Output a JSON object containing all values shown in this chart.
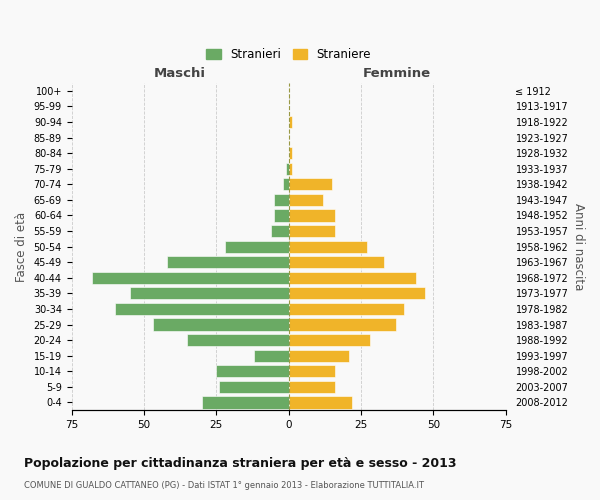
{
  "age_groups": [
    "0-4",
    "5-9",
    "10-14",
    "15-19",
    "20-24",
    "25-29",
    "30-34",
    "35-39",
    "40-44",
    "45-49",
    "50-54",
    "55-59",
    "60-64",
    "65-69",
    "70-74",
    "75-79",
    "80-84",
    "85-89",
    "90-94",
    "95-99",
    "100+"
  ],
  "birth_years": [
    "2008-2012",
    "2003-2007",
    "1998-2002",
    "1993-1997",
    "1988-1992",
    "1983-1987",
    "1978-1982",
    "1973-1977",
    "1968-1972",
    "1963-1967",
    "1958-1962",
    "1953-1957",
    "1948-1952",
    "1943-1947",
    "1938-1942",
    "1933-1937",
    "1928-1932",
    "1923-1927",
    "1918-1922",
    "1913-1917",
    "≤ 1912"
  ],
  "maschi": [
    30,
    24,
    25,
    12,
    35,
    47,
    60,
    55,
    68,
    42,
    22,
    6,
    5,
    5,
    2,
    1,
    0,
    0,
    0,
    0,
    0
  ],
  "femmine": [
    22,
    16,
    16,
    21,
    28,
    37,
    40,
    47,
    44,
    33,
    27,
    16,
    16,
    12,
    15,
    1,
    1,
    0,
    1,
    0,
    0
  ],
  "color_maschi": "#6aaa64",
  "color_femmine": "#f0b429",
  "title": "Popolazione per cittadinanza straniera per età e sesso - 2013",
  "subtitle": "COMUNE DI GUALDO CATTANEO (PG) - Dati ISTAT 1° gennaio 2013 - Elaborazione TUTTITALIA.IT",
  "xlabel_left": "Maschi",
  "xlabel_right": "Femmine",
  "ylabel_left": "Fasce di età",
  "ylabel_right": "Anni di nascita",
  "legend_maschi": "Stranieri",
  "legend_femmine": "Straniere",
  "xlim": 75,
  "background_color": "#f9f9f9",
  "grid_color": "#cccccc"
}
